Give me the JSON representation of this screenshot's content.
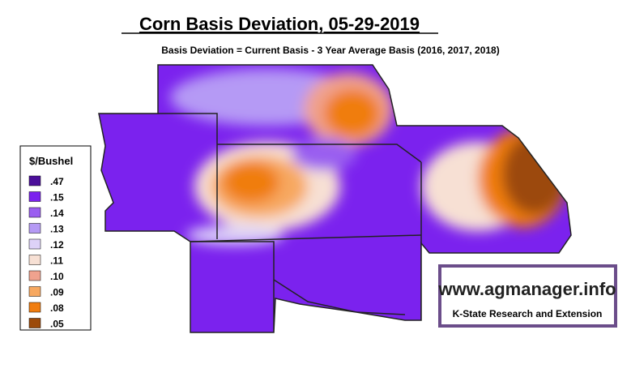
{
  "header": {
    "title": "Corn Basis Deviation, 05-29-2019",
    "subtitle": "Basis Deviation = Current Basis - 3 Year Average Basis (2016, 2017, 2018)"
  },
  "legend": {
    "title": "$/Bushel",
    "items": [
      {
        "label": ".47",
        "color": "#4b0f9a"
      },
      {
        "label": ".15",
        "color": "#7b22ee"
      },
      {
        "label": ".14",
        "color": "#9a5ef0"
      },
      {
        "label": ".13",
        "color": "#b59af5"
      },
      {
        "label": ".12",
        "color": "#ddd2f8"
      },
      {
        "label": ".11",
        "color": "#f7e0d4"
      },
      {
        "label": ".10",
        "color": "#f0a28e"
      },
      {
        "label": ".09",
        "color": "#f7a860"
      },
      {
        "label": ".08",
        "color": "#f07d10"
      },
      {
        "label": ".05",
        "color": "#9c4a0a"
      }
    ]
  },
  "logo": {
    "url": "www.agmanager.info",
    "org": "K-State Research and Extension"
  }
}
